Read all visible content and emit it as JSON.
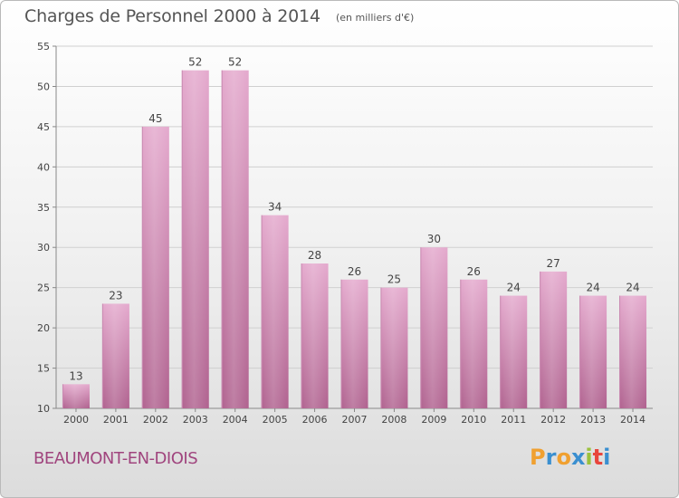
{
  "header": {
    "title": "Charges de Personnel 2000 à 2014",
    "subtitle": "(en milliers d'€)"
  },
  "footer": {
    "city": "BEAUMONT-EN-DIOIS",
    "logo_text": "Proxiti",
    "logo_colors": [
      "#f0a030",
      "#3a8fd0",
      "#f0a030",
      "#3a8fd0",
      "#9bc13c",
      "#e8453c",
      "#3a8fd0"
    ]
  },
  "colors": {
    "bar_top": "#e4a9cd",
    "bar_bottom": "#b0628f",
    "city": "#a0457e"
  },
  "chart_data": {
    "type": "bar",
    "title": "Charges de Personnel 2000 à 2014",
    "subtitle": "(en milliers d'€)",
    "xlabel": "",
    "ylabel": "",
    "categories": [
      "2000",
      "2001",
      "2002",
      "2003",
      "2004",
      "2005",
      "2006",
      "2007",
      "2008",
      "2009",
      "2010",
      "2011",
      "2012",
      "2013",
      "2014"
    ],
    "values": [
      13,
      23,
      45,
      52,
      52,
      34,
      28,
      26,
      25,
      30,
      26,
      24,
      27,
      24,
      24
    ],
    "ylim": [
      10,
      55
    ],
    "yticks": [
      10,
      15,
      20,
      25,
      30,
      35,
      40,
      45,
      50,
      55
    ],
    "grid": true,
    "legend": "none"
  }
}
